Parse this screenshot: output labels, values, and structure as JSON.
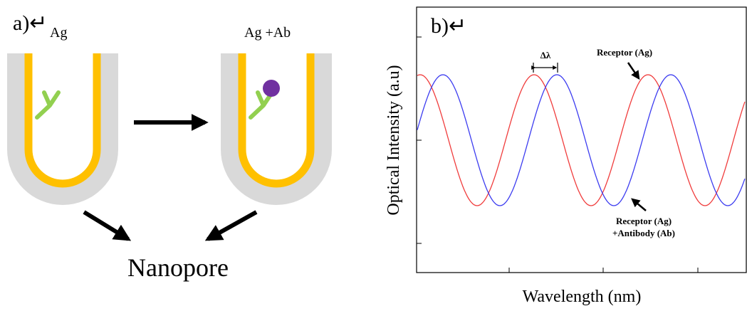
{
  "panel_a": {
    "label": "a)↵",
    "before_label": "Ag",
    "after_label": "Ag +Ab",
    "result_label": "Nanopore"
  },
  "panel_b": {
    "label": "b)↵",
    "y_axis_label": "Optical Intensity (a.u)",
    "x_axis_label": "Wavelength (nm)",
    "shift_label": "Δλ",
    "receptor_label": "Receptor (Ag)",
    "receptor_antibody_label": [
      "Receptor (Ag)",
      "+Antibody (Ab)"
    ]
  }
}
